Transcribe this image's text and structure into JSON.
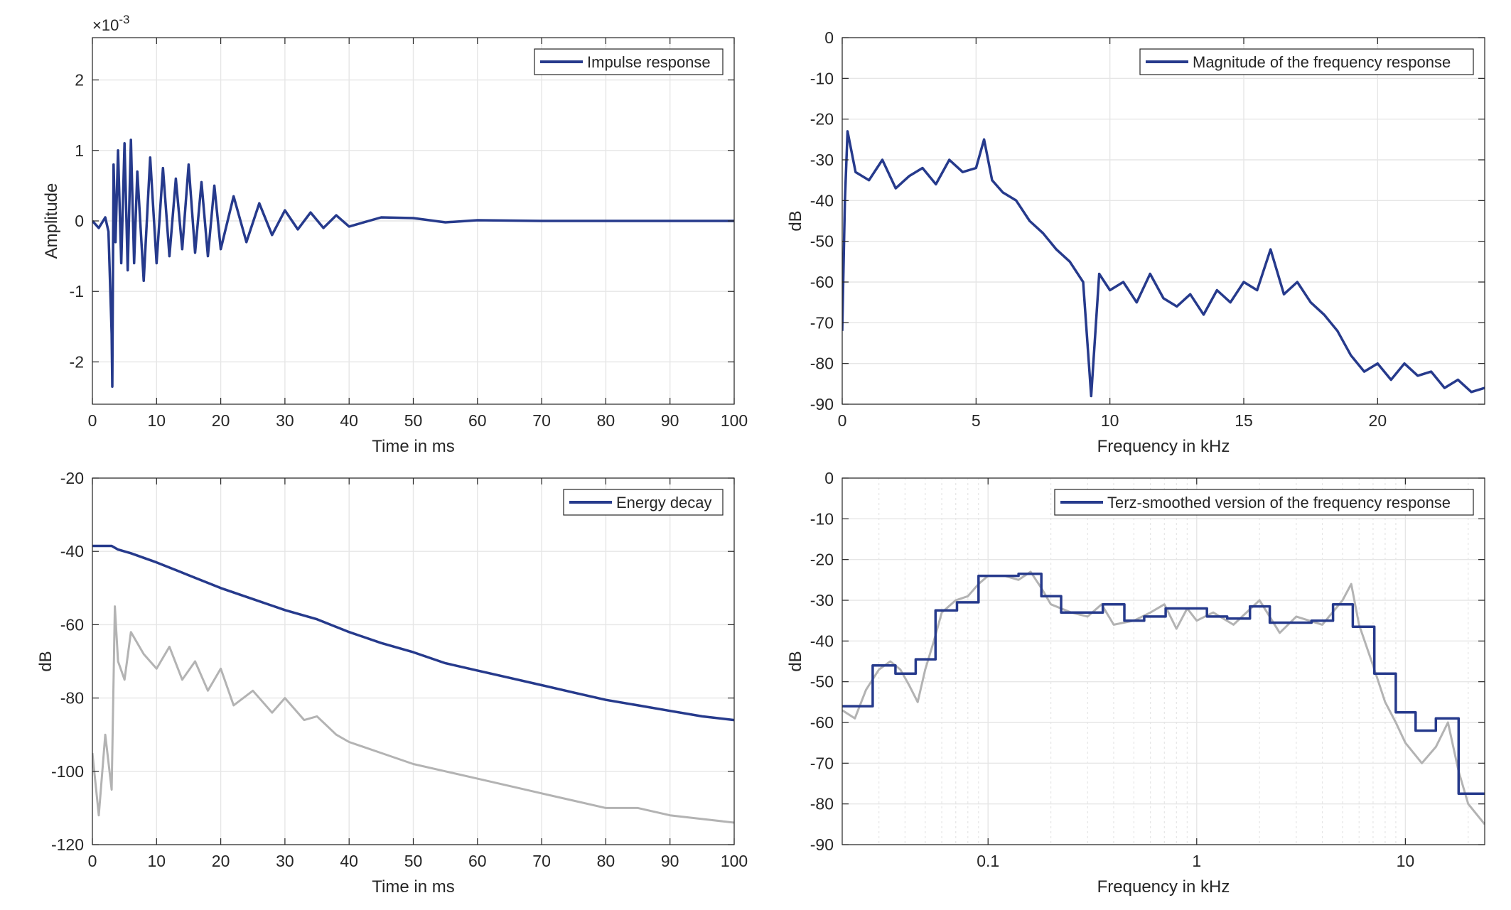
{
  "colors": {
    "series": "#263A8C",
    "secondary": "#B3B3B3",
    "grid": "#E6E6E6",
    "axis": "#262626"
  },
  "chart_data": [
    {
      "id": "impulse",
      "type": "line",
      "xlabel": "Time in ms",
      "ylabel": "Amplitude",
      "exponent_label": "×10",
      "exponent_power": "-3",
      "xlim": [
        0,
        100
      ],
      "ylim": [
        -2.6,
        2.6
      ],
      "xticks": [
        0,
        10,
        20,
        30,
        40,
        50,
        60,
        70,
        80,
        90,
        100
      ],
      "xtick_labels": [
        "0",
        "10",
        "20",
        "30",
        "40",
        "50",
        "60",
        "70",
        "80",
        "90",
        "100"
      ],
      "yticks": [
        -2,
        -1,
        0,
        1,
        2
      ],
      "ytick_labels": [
        "-2",
        "-1",
        "0",
        "1",
        "2"
      ],
      "grid": true,
      "legend_position": "top-right",
      "series": [
        {
          "name": "Impulse response",
          "role": "main",
          "x": [
            0,
            1,
            2,
            2.5,
            3,
            3.1,
            3.3,
            3.6,
            4,
            4.5,
            5,
            5.5,
            6,
            6.5,
            7,
            8,
            9,
            10,
            11,
            12,
            13,
            14,
            15,
            16,
            17,
            18,
            19,
            20,
            22,
            24,
            26,
            28,
            30,
            32,
            34,
            36,
            38,
            40,
            45,
            50,
            55,
            60,
            70,
            80,
            90,
            100
          ],
          "y": [
            0,
            -0.1,
            0.05,
            -0.15,
            -1.6,
            -2.35,
            0.8,
            -0.3,
            1.0,
            -0.6,
            1.1,
            -0.7,
            1.15,
            -0.6,
            0.7,
            -0.85,
            0.9,
            -0.6,
            0.75,
            -0.5,
            0.6,
            -0.4,
            0.8,
            -0.45,
            0.55,
            -0.5,
            0.5,
            -0.4,
            0.35,
            -0.3,
            0.25,
            -0.2,
            0.15,
            -0.12,
            0.12,
            -0.1,
            0.08,
            -0.08,
            0.05,
            0.04,
            -0.02,
            0.01,
            0,
            0,
            0,
            0
          ]
        }
      ]
    },
    {
      "id": "magnitude",
      "type": "line",
      "xlabel": "Frequency in kHz",
      "ylabel": "dB",
      "xlim": [
        0,
        24
      ],
      "ylim": [
        -90,
        0
      ],
      "xticks": [
        0,
        5,
        10,
        15,
        20
      ],
      "xtick_labels": [
        "0",
        "5",
        "10",
        "15",
        "20"
      ],
      "yticks": [
        0,
        -10,
        -20,
        -30,
        -40,
        -50,
        -60,
        -70,
        -80,
        -90
      ],
      "ytick_labels": [
        "0",
        "-10",
        "-20",
        "-30",
        "-40",
        "-50",
        "-60",
        "-70",
        "-80",
        "-90"
      ],
      "grid": true,
      "legend_position": "top-right",
      "series": [
        {
          "name": "Magnitude of the frequency response",
          "role": "main",
          "x": [
            0,
            0.1,
            0.2,
            0.5,
            1,
            1.5,
            2,
            2.5,
            3,
            3.5,
            4,
            4.5,
            5,
            5.3,
            5.6,
            6,
            6.5,
            7,
            7.5,
            8,
            8.5,
            9,
            9.3,
            9.6,
            10,
            10.5,
            11,
            11.5,
            12,
            12.5,
            13,
            13.5,
            14,
            14.5,
            15,
            15.5,
            16,
            16.5,
            17,
            17.5,
            18,
            18.5,
            19,
            19.5,
            20,
            20.5,
            21,
            21.5,
            22,
            22.5,
            23,
            23.5,
            24
          ],
          "y": [
            -72,
            -40,
            -23,
            -33,
            -35,
            -30,
            -37,
            -34,
            -32,
            -36,
            -30,
            -33,
            -32,
            -25,
            -35,
            -38,
            -40,
            -45,
            -48,
            -52,
            -55,
            -60,
            -88,
            -58,
            -62,
            -60,
            -65,
            -58,
            -64,
            -66,
            -63,
            -68,
            -62,
            -65,
            -60,
            -62,
            -52,
            -63,
            -60,
            -65,
            -68,
            -72,
            -78,
            -82,
            -80,
            -84,
            -80,
            -83,
            -82,
            -86,
            -84,
            -87,
            -86
          ]
        }
      ]
    },
    {
      "id": "energy",
      "type": "line",
      "xlabel": "Time in ms",
      "ylabel": "dB",
      "xlim": [
        0,
        100
      ],
      "ylim": [
        -120,
        -20
      ],
      "xticks": [
        0,
        10,
        20,
        30,
        40,
        50,
        60,
        70,
        80,
        90,
        100
      ],
      "xtick_labels": [
        "0",
        "10",
        "20",
        "30",
        "40",
        "50",
        "60",
        "70",
        "80",
        "90",
        "100"
      ],
      "yticks": [
        -20,
        -40,
        -60,
        -80,
        -100,
        -120
      ],
      "ytick_labels": [
        "-20",
        "-40",
        "-60",
        "-80",
        "-100",
        "-120"
      ],
      "grid": true,
      "legend_position": "top-right",
      "series": [
        {
          "name": "Energy decay",
          "role": "main",
          "x": [
            0,
            3,
            4,
            6,
            10,
            15,
            20,
            25,
            30,
            35,
            40,
            45,
            50,
            55,
            60,
            65,
            70,
            75,
            80,
            85,
            90,
            95,
            100
          ],
          "y": [
            -38.5,
            -38.5,
            -39.5,
            -40.5,
            -43,
            -46.5,
            -50,
            -53,
            -56,
            -58.5,
            -62,
            -65,
            -67.5,
            -70.5,
            -72.5,
            -74.5,
            -76.5,
            -78.5,
            -80.5,
            -82,
            -83.5,
            -85,
            -86
          ]
        },
        {
          "name": "",
          "role": "secondary",
          "x": [
            0,
            1,
            2,
            3,
            3.5,
            4,
            5,
            6,
            8,
            10,
            12,
            14,
            16,
            18,
            20,
            22,
            25,
            28,
            30,
            33,
            35,
            38,
            40,
            45,
            50,
            55,
            60,
            65,
            70,
            75,
            80,
            85,
            90,
            95,
            100
          ],
          "y": [
            -95,
            -112,
            -90,
            -105,
            -55,
            -70,
            -75,
            -62,
            -68,
            -72,
            -66,
            -75,
            -70,
            -78,
            -72,
            -82,
            -78,
            -84,
            -80,
            -86,
            -85,
            -90,
            -92,
            -95,
            -98,
            -100,
            -102,
            -104,
            -106,
            -108,
            -110,
            -110,
            -112,
            -113,
            -114
          ]
        }
      ]
    },
    {
      "id": "terz",
      "type": "line",
      "xscale": "log",
      "xlabel": "Frequency in kHz",
      "ylabel": "dB",
      "xlim": [
        0.02,
        24
      ],
      "ylim": [
        -90,
        0
      ],
      "xticks": [
        0.1,
        1,
        10
      ],
      "xtick_labels": [
        "0.1",
        "1",
        "10"
      ],
      "yticks": [
        0,
        -10,
        -20,
        -30,
        -40,
        -50,
        -60,
        -70,
        -80,
        -90
      ],
      "ytick_labels": [
        "0",
        "-10",
        "-20",
        "-30",
        "-40",
        "-50",
        "-60",
        "-70",
        "-80",
        "-90"
      ],
      "grid": true,
      "legend_position": "top-right",
      "series": [
        {
          "name": "Terz-smoothed version of the frequency response",
          "role": "main",
          "step": true,
          "x": [
            0.02,
            0.028,
            0.036,
            0.045,
            0.056,
            0.071,
            0.09,
            0.112,
            0.14,
            0.18,
            0.224,
            0.28,
            0.355,
            0.45,
            0.56,
            0.71,
            0.9,
            1.12,
            1.4,
            1.8,
            2.24,
            2.8,
            3.55,
            4.5,
            5.6,
            7.1,
            9,
            11.2,
            14,
            18,
            24
          ],
          "y": [
            -56,
            -46,
            -48,
            -44.5,
            -32.5,
            -30.5,
            -24,
            -24,
            -23.5,
            -29,
            -33,
            -33,
            -31,
            -35,
            -34,
            -32,
            -32,
            -34,
            -34.5,
            -31.5,
            -35.5,
            -35.5,
            -35,
            -31,
            -36.5,
            -48,
            -57.5,
            -62,
            -59,
            -77.5,
            -77.5
          ]
        },
        {
          "name": "",
          "role": "secondary",
          "x": [
            0.02,
            0.023,
            0.026,
            0.03,
            0.034,
            0.038,
            0.042,
            0.046,
            0.05,
            0.055,
            0.06,
            0.07,
            0.08,
            0.09,
            0.1,
            0.12,
            0.14,
            0.16,
            0.18,
            0.2,
            0.25,
            0.3,
            0.35,
            0.4,
            0.5,
            0.6,
            0.7,
            0.8,
            0.9,
            1,
            1.2,
            1.5,
            2,
            2.5,
            3,
            4,
            5,
            5.5,
            6,
            7,
            8,
            9,
            10,
            12,
            14,
            16,
            18,
            20,
            24
          ],
          "y": [
            -57,
            -59,
            -52,
            -47,
            -45,
            -47,
            -51,
            -55,
            -47,
            -40,
            -33,
            -30,
            -29,
            -26,
            -24,
            -24,
            -25,
            -23,
            -27,
            -31,
            -33,
            -34,
            -31,
            -36,
            -35,
            -33,
            -31,
            -37,
            -32,
            -35,
            -33,
            -36,
            -30,
            -38,
            -34,
            -36,
            -30,
            -26,
            -36,
            -46,
            -55,
            -60,
            -65,
            -70,
            -66,
            -60,
            -72,
            -80,
            -85
          ]
        }
      ]
    }
  ]
}
